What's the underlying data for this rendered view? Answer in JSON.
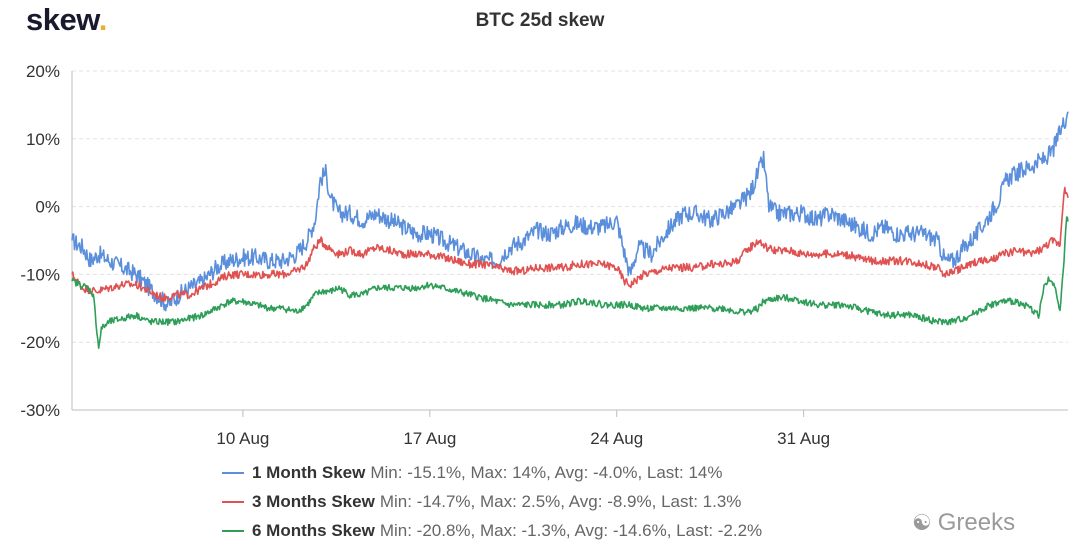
{
  "brand": {
    "name": "skew",
    "dot": "."
  },
  "chart_data": {
    "type": "line",
    "title": "BTC 25d skew",
    "xlabel": "",
    "ylabel": "",
    "x_range_days": [
      3.6,
      40.9
    ],
    "x_ticks": [
      {
        "day": 10,
        "label": "10 Aug"
      },
      {
        "day": 17,
        "label": "17 Aug"
      },
      {
        "day": 24,
        "label": "24 Aug"
      },
      {
        "day": 31,
        "label": "31 Aug"
      }
    ],
    "ylim": [
      -30,
      20
    ],
    "y_ticks": [
      {
        "value": 20,
        "label": "20%"
      },
      {
        "value": 10,
        "label": "10%"
      },
      {
        "value": 0,
        "label": "0%"
      },
      {
        "value": -10,
        "label": "-10%"
      },
      {
        "value": -20,
        "label": "-20%"
      },
      {
        "value": -30,
        "label": "-30%"
      }
    ],
    "grid": true,
    "legend_position": "bottom",
    "series": [
      {
        "name": "1 Month Skew",
        "color": "#5b8fdb",
        "stats": "Min: -15.1%, Max: 14%, Avg: -4.0%, Last: 14%",
        "noise": 1.3,
        "points": [
          [
            3.6,
            -5
          ],
          [
            4.0,
            -6
          ],
          [
            4.3,
            -8
          ],
          [
            4.6,
            -7
          ],
          [
            5.0,
            -8
          ],
          [
            5.5,
            -9
          ],
          [
            6.0,
            -10
          ],
          [
            6.5,
            -12
          ],
          [
            6.9,
            -13.5
          ],
          [
            7.2,
            -14.5
          ],
          [
            7.6,
            -13
          ],
          [
            8.0,
            -12
          ],
          [
            8.5,
            -11
          ],
          [
            9.0,
            -9
          ],
          [
            9.5,
            -8
          ],
          [
            10.0,
            -7.5
          ],
          [
            10.5,
            -7.5
          ],
          [
            11.0,
            -8
          ],
          [
            11.5,
            -8
          ],
          [
            12.0,
            -7
          ],
          [
            12.4,
            -5
          ],
          [
            12.7,
            -2
          ],
          [
            12.9,
            4
          ],
          [
            13.1,
            5
          ],
          [
            13.3,
            1
          ],
          [
            13.6,
            -1
          ],
          [
            14.0,
            -1
          ],
          [
            14.5,
            -2
          ],
          [
            15.0,
            -1
          ],
          [
            15.5,
            -2
          ],
          [
            16.0,
            -3
          ],
          [
            16.5,
            -4
          ],
          [
            17.0,
            -4
          ],
          [
            17.5,
            -5
          ],
          [
            18.0,
            -6
          ],
          [
            18.5,
            -7
          ],
          [
            19.0,
            -8
          ],
          [
            19.5,
            -8
          ],
          [
            20.0,
            -6
          ],
          [
            20.5,
            -5
          ],
          [
            21.0,
            -3.5
          ],
          [
            21.5,
            -4
          ],
          [
            22.0,
            -3
          ],
          [
            22.5,
            -2.5
          ],
          [
            23.0,
            -3
          ],
          [
            23.5,
            -3
          ],
          [
            24.0,
            -2
          ],
          [
            24.3,
            -7
          ],
          [
            24.5,
            -10
          ],
          [
            24.8,
            -6
          ],
          [
            25.3,
            -7
          ],
          [
            25.8,
            -4
          ],
          [
            26.0,
            -3
          ],
          [
            26.5,
            -1
          ],
          [
            27.0,
            -1
          ],
          [
            27.5,
            -2
          ],
          [
            28.0,
            -1
          ],
          [
            28.5,
            0
          ],
          [
            29.0,
            2
          ],
          [
            29.3,
            5
          ],
          [
            29.5,
            7
          ],
          [
            29.7,
            0
          ],
          [
            30.0,
            -1
          ],
          [
            30.5,
            -1
          ],
          [
            31.0,
            -1
          ],
          [
            31.5,
            -2
          ],
          [
            32.0,
            -1
          ],
          [
            32.5,
            -2
          ],
          [
            33.0,
            -3
          ],
          [
            33.5,
            -4
          ],
          [
            34.0,
            -3
          ],
          [
            34.5,
            -4
          ],
          [
            35.0,
            -4
          ],
          [
            35.5,
            -4
          ],
          [
            36.0,
            -5
          ],
          [
            36.3,
            -8
          ],
          [
            36.6,
            -8
          ],
          [
            37.0,
            -6
          ],
          [
            37.5,
            -4
          ],
          [
            38.0,
            -1
          ],
          [
            38.3,
            1
          ],
          [
            38.6,
            4
          ],
          [
            39.0,
            5
          ],
          [
            39.5,
            6
          ],
          [
            40.0,
            7
          ],
          [
            40.3,
            8
          ],
          [
            40.6,
            11
          ],
          [
            40.9,
            14
          ]
        ]
      },
      {
        "name": "3 Months Skew",
        "color": "#e05252",
        "stats": "Min: -14.7%, Max: 2.5%, Avg: -8.9%, Last: 1.3%",
        "noise": 0.6,
        "points": [
          [
            3.6,
            -10
          ],
          [
            4.0,
            -12
          ],
          [
            4.5,
            -12.5
          ],
          [
            5.0,
            -12
          ],
          [
            5.5,
            -11.5
          ],
          [
            6.0,
            -11.5
          ],
          [
            6.5,
            -12.5
          ],
          [
            7.0,
            -13.5
          ],
          [
            7.5,
            -13
          ],
          [
            8.0,
            -13
          ],
          [
            8.5,
            -12
          ],
          [
            9.0,
            -11
          ],
          [
            9.5,
            -10
          ],
          [
            10.0,
            -10
          ],
          [
            10.5,
            -10
          ],
          [
            11.0,
            -10
          ],
          [
            11.5,
            -10
          ],
          [
            12.0,
            -9.5
          ],
          [
            12.4,
            -8.5
          ],
          [
            12.6,
            -6.5
          ],
          [
            12.9,
            -5
          ],
          [
            13.2,
            -6
          ],
          [
            13.6,
            -7
          ],
          [
            14.0,
            -6.5
          ],
          [
            14.5,
            -7
          ],
          [
            15.0,
            -6
          ],
          [
            15.5,
            -6.5
          ],
          [
            16.0,
            -7
          ],
          [
            16.5,
            -7
          ],
          [
            17.0,
            -7
          ],
          [
            17.5,
            -7.5
          ],
          [
            18.0,
            -8
          ],
          [
            18.5,
            -8.5
          ],
          [
            19.0,
            -8.5
          ],
          [
            19.5,
            -9
          ],
          [
            20.0,
            -9.5
          ],
          [
            20.5,
            -9.5
          ],
          [
            21.0,
            -9
          ],
          [
            21.5,
            -9
          ],
          [
            22.0,
            -9
          ],
          [
            22.5,
            -8.5
          ],
          [
            23.0,
            -8.5
          ],
          [
            23.5,
            -8.5
          ],
          [
            24.0,
            -9
          ],
          [
            24.3,
            -11
          ],
          [
            24.5,
            -11.5
          ],
          [
            25.0,
            -10
          ],
          [
            25.5,
            -9.5
          ],
          [
            26.0,
            -9
          ],
          [
            26.5,
            -9
          ],
          [
            27.0,
            -9
          ],
          [
            27.5,
            -8.5
          ],
          [
            28.0,
            -8.5
          ],
          [
            28.5,
            -8
          ],
          [
            29.0,
            -6
          ],
          [
            29.3,
            -5
          ],
          [
            29.6,
            -6
          ],
          [
            30.0,
            -6.5
          ],
          [
            30.5,
            -6.5
          ],
          [
            31.0,
            -7
          ],
          [
            31.5,
            -7
          ],
          [
            32.0,
            -7
          ],
          [
            32.5,
            -7
          ],
          [
            33.0,
            -7.5
          ],
          [
            33.5,
            -8
          ],
          [
            34.0,
            -8
          ],
          [
            34.5,
            -8
          ],
          [
            35.0,
            -8
          ],
          [
            35.5,
            -8.5
          ],
          [
            36.0,
            -9
          ],
          [
            36.3,
            -10
          ],
          [
            36.6,
            -9.5
          ],
          [
            37.0,
            -9
          ],
          [
            37.5,
            -8
          ],
          [
            38.0,
            -8
          ],
          [
            38.5,
            -7
          ],
          [
            39.0,
            -6.5
          ],
          [
            39.5,
            -7
          ],
          [
            40.0,
            -6
          ],
          [
            40.3,
            -5
          ],
          [
            40.6,
            -5.5
          ],
          [
            40.75,
            2.5
          ],
          [
            40.9,
            1.3
          ]
        ]
      },
      {
        "name": "6 Months Skew",
        "color": "#2e9e58",
        "stats": "Min: -20.8%, Max: -1.3%, Avg: -14.6%, Last: -2.2%",
        "noise": 0.5,
        "points": [
          [
            3.6,
            -11
          ],
          [
            3.9,
            -11.5
          ],
          [
            4.2,
            -12
          ],
          [
            4.4,
            -13
          ],
          [
            4.5,
            -17
          ],
          [
            4.6,
            -20.8
          ],
          [
            4.7,
            -18
          ],
          [
            5.0,
            -17
          ],
          [
            5.5,
            -16.5
          ],
          [
            6.0,
            -16
          ],
          [
            6.5,
            -17
          ],
          [
            7.0,
            -17
          ],
          [
            7.5,
            -17
          ],
          [
            8.0,
            -16.5
          ],
          [
            8.5,
            -16
          ],
          [
            9.0,
            -15
          ],
          [
            9.5,
            -14
          ],
          [
            10.0,
            -14
          ],
          [
            10.5,
            -14.5
          ],
          [
            11.0,
            -15
          ],
          [
            11.5,
            -15
          ],
          [
            12.0,
            -15.5
          ],
          [
            12.4,
            -14.5
          ],
          [
            12.7,
            -13
          ],
          [
            13.0,
            -12.5
          ],
          [
            13.3,
            -12.5
          ],
          [
            13.6,
            -12
          ],
          [
            14.0,
            -13
          ],
          [
            14.5,
            -13
          ],
          [
            15.0,
            -12
          ],
          [
            15.5,
            -12
          ],
          [
            16.0,
            -12
          ],
          [
            16.5,
            -12
          ],
          [
            17.0,
            -11.5
          ],
          [
            17.5,
            -12
          ],
          [
            18.0,
            -12.5
          ],
          [
            18.5,
            -13
          ],
          [
            19.0,
            -13.5
          ],
          [
            19.5,
            -14
          ],
          [
            20.0,
            -14.5
          ],
          [
            20.5,
            -14.5
          ],
          [
            21.0,
            -14.5
          ],
          [
            21.5,
            -14.5
          ],
          [
            22.0,
            -14.5
          ],
          [
            22.5,
            -14
          ],
          [
            23.0,
            -14
          ],
          [
            23.5,
            -14.5
          ],
          [
            24.0,
            -14.5
          ],
          [
            24.5,
            -14.5
          ],
          [
            25.0,
            -15
          ],
          [
            25.5,
            -15
          ],
          [
            26.0,
            -15
          ],
          [
            26.5,
            -15
          ],
          [
            27.0,
            -15
          ],
          [
            27.5,
            -15
          ],
          [
            28.0,
            -15
          ],
          [
            28.5,
            -15.5
          ],
          [
            29.0,
            -15.5
          ],
          [
            29.3,
            -15
          ],
          [
            29.5,
            -14
          ],
          [
            30.0,
            -13.5
          ],
          [
            30.5,
            -13.5
          ],
          [
            31.0,
            -14
          ],
          [
            31.5,
            -14.5
          ],
          [
            32.0,
            -14.5
          ],
          [
            32.5,
            -14.5
          ],
          [
            33.0,
            -15
          ],
          [
            33.5,
            -15.5
          ],
          [
            34.0,
            -16
          ],
          [
            34.5,
            -16
          ],
          [
            35.0,
            -16
          ],
          [
            35.5,
            -16.5
          ],
          [
            36.0,
            -17
          ],
          [
            36.5,
            -17
          ],
          [
            37.0,
            -16.5
          ],
          [
            37.5,
            -15.5
          ],
          [
            38.0,
            -14.5
          ],
          [
            38.5,
            -14
          ],
          [
            39.0,
            -14
          ],
          [
            39.5,
            -15
          ],
          [
            39.8,
            -16
          ],
          [
            40.0,
            -12
          ],
          [
            40.2,
            -10.5
          ],
          [
            40.4,
            -12
          ],
          [
            40.6,
            -15
          ],
          [
            40.75,
            -8
          ],
          [
            40.85,
            -1.3
          ],
          [
            40.9,
            -2.2
          ]
        ]
      }
    ]
  },
  "watermark": {
    "text": "Greeks"
  }
}
